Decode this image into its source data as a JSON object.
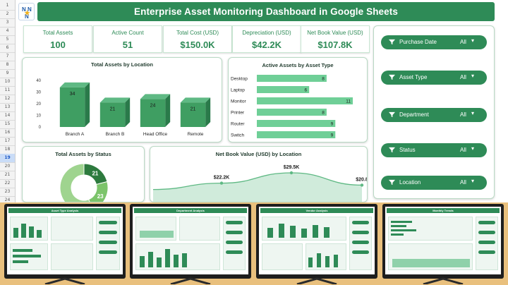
{
  "header": {
    "title": "Enterprise Asset Monitoring Dashboard in Google Sheets"
  },
  "sheet": {
    "row_numbers": [
      "1",
      "2",
      "3",
      "4",
      "5",
      "6",
      "7",
      "8",
      "9",
      "10",
      "11",
      "12",
      "13",
      "14",
      "15",
      "16",
      "17",
      "18",
      "19",
      "20",
      "21",
      "22",
      "23",
      "24"
    ],
    "selected_row": "19"
  },
  "kpis": [
    {
      "label": "Total Assets",
      "value": "100"
    },
    {
      "label": "Active Count",
      "value": "51"
    },
    {
      "label": "Total Cost (USD)",
      "value": "$150.0K"
    },
    {
      "label": "Depreciation (USD)",
      "value": "$42.2K"
    },
    {
      "label": "Net Book Value (USD)",
      "value": "$107.8K"
    }
  ],
  "filters": [
    {
      "label": "Purchase Date",
      "value": "All"
    },
    {
      "label": "Asset Type",
      "value": "All"
    },
    {
      "label": "Department",
      "value": "All"
    },
    {
      "label": "Status",
      "value": "All"
    },
    {
      "label": "Location",
      "value": "All"
    }
  ],
  "colors": {
    "primary": "#2e8b57",
    "bar": "#3f9e62",
    "bar_light": "#6fcf97",
    "area": "#a9dbbd"
  },
  "chart_data": [
    {
      "type": "bar",
      "title": "Total Assets by Location",
      "categories": [
        "Branch A",
        "Branch B",
        "Head Office",
        "Remote"
      ],
      "values": [
        34,
        21,
        24,
        21
      ],
      "yticks": [
        "40",
        "30",
        "20",
        "10",
        "0"
      ],
      "ylim": [
        0,
        40
      ]
    },
    {
      "type": "bar",
      "orientation": "horizontal",
      "title": "Active Assets by Asset Type",
      "categories": [
        "Desktop",
        "Laptop",
        "Monitor",
        "Printer",
        "Router",
        "Switch"
      ],
      "values": [
        8,
        6,
        11,
        8,
        9,
        9
      ]
    },
    {
      "type": "pie",
      "title": "Total Assets by Status",
      "values": [
        21,
        23,
        56
      ],
      "labels": [
        "21",
        "23",
        ""
      ]
    },
    {
      "type": "area",
      "title": "Net Book Value (USD) by Location",
      "values": [
        22.2,
        29.5,
        20.8
      ],
      "labels": [
        "$22.2K",
        "$29.5K",
        "$20.8"
      ]
    }
  ],
  "thumbnails": [
    {
      "title": "Asset Type Analysis"
    },
    {
      "title": "Department Analysis"
    },
    {
      "title": "Vendor Analysis"
    },
    {
      "title": "Monthly Trends"
    }
  ]
}
